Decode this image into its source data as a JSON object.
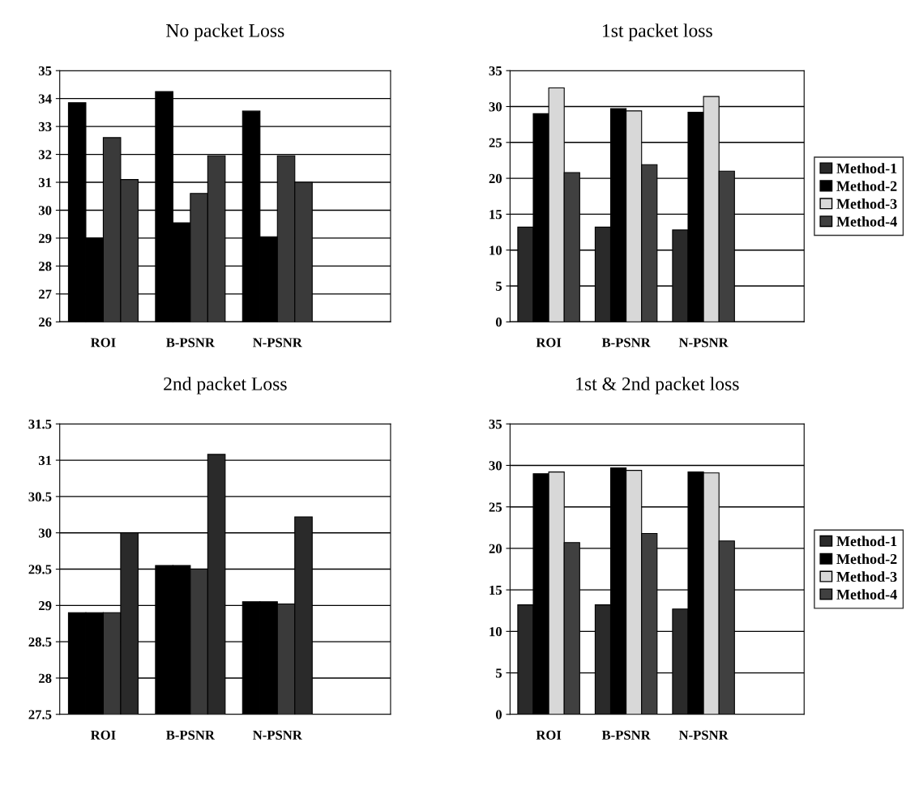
{
  "chart_data": [
    {
      "type": "bar",
      "title": "No packet Loss",
      "categories": [
        "ROI",
        "B-PSNR",
        "N-PSNR"
      ],
      "ylim": [
        26,
        35
      ],
      "yticks": [
        26,
        27,
        28,
        29,
        30,
        31,
        32,
        33,
        34,
        35
      ],
      "grid": "y",
      "legend": false,
      "series": [
        {
          "color": "#000000",
          "values": [
            33.85,
            34.25,
            33.55
          ]
        },
        {
          "color": "#000000",
          "values": [
            29.0,
            29.55,
            29.05
          ]
        },
        {
          "color": "#3a3a3a",
          "values": [
            32.6,
            30.6,
            31.95
          ]
        },
        {
          "color": "#3a3a3a",
          "values": [
            31.1,
            31.95,
            31.0
          ]
        }
      ]
    },
    {
      "type": "bar",
      "title": "1st packet loss",
      "categories": [
        "ROI",
        "B-PSNR",
        "N-PSNR"
      ],
      "ylim": [
        0,
        35
      ],
      "yticks": [
        0,
        5,
        10,
        15,
        20,
        25,
        30,
        35
      ],
      "grid": "y",
      "legend": "right",
      "series": [
        {
          "name": "Method-1",
          "color": "#2a2a2a",
          "values": [
            13.2,
            13.2,
            12.8
          ]
        },
        {
          "name": "Method-2",
          "color": "#000000",
          "values": [
            29.0,
            29.7,
            29.2
          ]
        },
        {
          "name": "Method-3",
          "color": "#d8d8d8",
          "values": [
            32.6,
            29.4,
            31.4
          ]
        },
        {
          "name": "Method-4",
          "color": "#404040",
          "values": [
            20.8,
            21.9,
            21.0
          ]
        }
      ]
    },
    {
      "type": "bar",
      "title": "2nd packet Loss",
      "categories": [
        "ROI",
        "B-PSNR",
        "N-PSNR"
      ],
      "ylim": [
        27.5,
        31.5
      ],
      "yticks": [
        27.5,
        28,
        28.5,
        29,
        29.5,
        30,
        30.5,
        31,
        31.5
      ],
      "grid": "y",
      "legend": false,
      "series": [
        {
          "color": "#000000",
          "values": [
            28.9,
            29.55,
            29.05
          ]
        },
        {
          "color": "#000000",
          "values": [
            28.9,
            29.55,
            29.05
          ]
        },
        {
          "color": "#3a3a3a",
          "values": [
            28.9,
            29.5,
            29.02
          ]
        },
        {
          "color": "#2a2a2a",
          "values": [
            30.0,
            31.08,
            30.22
          ]
        }
      ]
    },
    {
      "type": "bar",
      "title": "1st & 2nd packet loss",
      "categories": [
        "ROI",
        "B-PSNR",
        "N-PSNR"
      ],
      "ylim": [
        0,
        35
      ],
      "yticks": [
        0,
        5,
        10,
        15,
        20,
        25,
        30,
        35
      ],
      "grid": "y",
      "legend": "right",
      "series": [
        {
          "name": "Method-1",
          "color": "#2a2a2a",
          "values": [
            13.2,
            13.2,
            12.7
          ]
        },
        {
          "name": "Method-2",
          "color": "#000000",
          "values": [
            29.0,
            29.7,
            29.2
          ]
        },
        {
          "name": "Method-3",
          "color": "#d8d8d8",
          "values": [
            29.2,
            29.4,
            29.1
          ]
        },
        {
          "name": "Method-4",
          "color": "#404040",
          "values": [
            20.7,
            21.8,
            20.9
          ]
        }
      ]
    }
  ]
}
